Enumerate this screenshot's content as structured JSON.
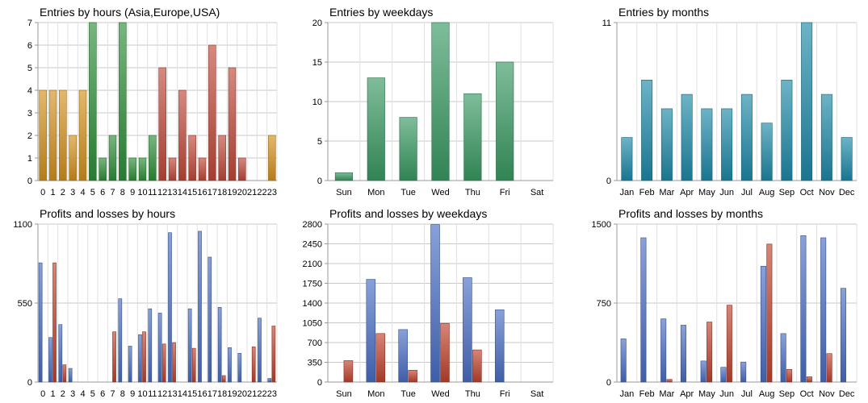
{
  "chart_data": [
    {
      "type": "bar",
      "title": "Entries by hours (Asia,Europe,USA)",
      "categories": [
        "0",
        "1",
        "2",
        "3",
        "4",
        "5",
        "6",
        "7",
        "8",
        "9",
        "10",
        "11",
        "12",
        "13",
        "14",
        "15",
        "16",
        "17",
        "18",
        "19",
        "20",
        "21",
        "22",
        "23"
      ],
      "values": [
        4,
        4,
        4,
        2,
        4,
        7,
        1,
        2,
        7,
        1,
        1,
        2,
        5,
        1,
        4,
        2,
        1,
        6,
        2,
        5,
        1,
        0,
        0,
        2
      ],
      "bar_colors": [
        "#d4921f",
        "#d4921f",
        "#d4921f",
        "#d4921f",
        "#d4921f",
        "#2f8f3a",
        "#2f8f3a",
        "#2f8f3a",
        "#2f8f3a",
        "#2f8f3a",
        "#2f8f3a",
        "#2f8f3a",
        "#c0493a",
        "#c0493a",
        "#c0493a",
        "#c0493a",
        "#c0493a",
        "#c0493a",
        "#c0493a",
        "#c0493a",
        "#c0493a",
        "#c0493a",
        "#c0493a",
        "#d4921f"
      ],
      "yticks": [
        0,
        1,
        2,
        3,
        4,
        5,
        6,
        7
      ],
      "ylim": [
        0,
        7
      ],
      "grid": true
    },
    {
      "type": "bar",
      "title": "Entries by weekdays",
      "categories": [
        "Sun",
        "Mon",
        "Tue",
        "Wed",
        "Thu",
        "Fri",
        "Sat"
      ],
      "values": [
        1,
        13,
        8,
        20,
        11,
        15,
        0
      ],
      "color": "#3a9a63",
      "yticks": [
        0,
        5,
        10,
        15,
        20
      ],
      "ylim": [
        0,
        20
      ],
      "grid": true
    },
    {
      "type": "bar",
      "title": "Entries by months",
      "categories": [
        "Jan",
        "Feb",
        "Mar",
        "Apr",
        "May",
        "Jun",
        "Jul",
        "Aug",
        "Sep",
        "Oct",
        "Nov",
        "Dec"
      ],
      "values": [
        3,
        7,
        5,
        6,
        5,
        5,
        6,
        4,
        7,
        11,
        6,
        3
      ],
      "color": "#1e8aa8",
      "yticks": [
        0,
        11
      ],
      "ylim": [
        0,
        11
      ],
      "grid": true
    },
    {
      "type": "bar",
      "title": "Profits and losses by hours",
      "categories": [
        "0",
        "1",
        "2",
        "3",
        "4",
        "5",
        "6",
        "7",
        "8",
        "9",
        "10",
        "11",
        "12",
        "13",
        "14",
        "15",
        "16",
        "17",
        "18",
        "19",
        "20",
        "21",
        "22",
        "23"
      ],
      "series": [
        {
          "values": [
            830,
            310,
            400,
            95,
            0,
            0,
            0,
            0,
            580,
            250,
            330,
            510,
            480,
            1040,
            0,
            510,
            1050,
            870,
            520,
            240,
            200,
            0,
            445,
            25
          ],
          "color": "#4a6fc4"
        },
        {
          "values": [
            0,
            830,
            120,
            0,
            0,
            0,
            0,
            350,
            0,
            0,
            350,
            0,
            265,
            275,
            0,
            235,
            0,
            0,
            45,
            0,
            0,
            245,
            0,
            390
          ],
          "color": "#c0432e"
        }
      ],
      "yticks": [
        0,
        550,
        1100
      ],
      "ylim": [
        0,
        1100
      ],
      "grid": true
    },
    {
      "type": "bar",
      "title": "Profits and losses by weekdays",
      "categories": [
        "Sun",
        "Mon",
        "Tue",
        "Wed",
        "Thu",
        "Fri",
        "Sat"
      ],
      "series": [
        {
          "values": [
            0,
            1820,
            930,
            2790,
            1850,
            1280,
            0
          ],
          "color": "#4a6fc4"
        },
        {
          "values": [
            380,
            860,
            210,
            1040,
            570,
            0,
            0
          ],
          "color": "#c0432e"
        }
      ],
      "yticks": [
        0,
        350,
        700,
        1050,
        1400,
        1750,
        2100,
        2450,
        2800
      ],
      "ylim": [
        0,
        2800
      ],
      "grid": true
    },
    {
      "type": "bar",
      "title": "Profits and losses by months",
      "categories": [
        "Jan",
        "Feb",
        "Mar",
        "Apr",
        "May",
        "Jun",
        "Jul",
        "Aug",
        "Sep",
        "Oct",
        "Nov",
        "Dec"
      ],
      "series": [
        {
          "values": [
            410,
            1370,
            600,
            540,
            200,
            140,
            190,
            1100,
            460,
            1390,
            1370,
            890
          ],
          "color": "#4a6fc4"
        },
        {
          "values": [
            0,
            0,
            25,
            0,
            570,
            730,
            0,
            1310,
            120,
            50,
            270,
            0
          ],
          "color": "#c0432e"
        }
      ],
      "yticks": [
        0,
        750,
        1500
      ],
      "ylim": [
        0,
        1500
      ],
      "grid": true
    }
  ]
}
